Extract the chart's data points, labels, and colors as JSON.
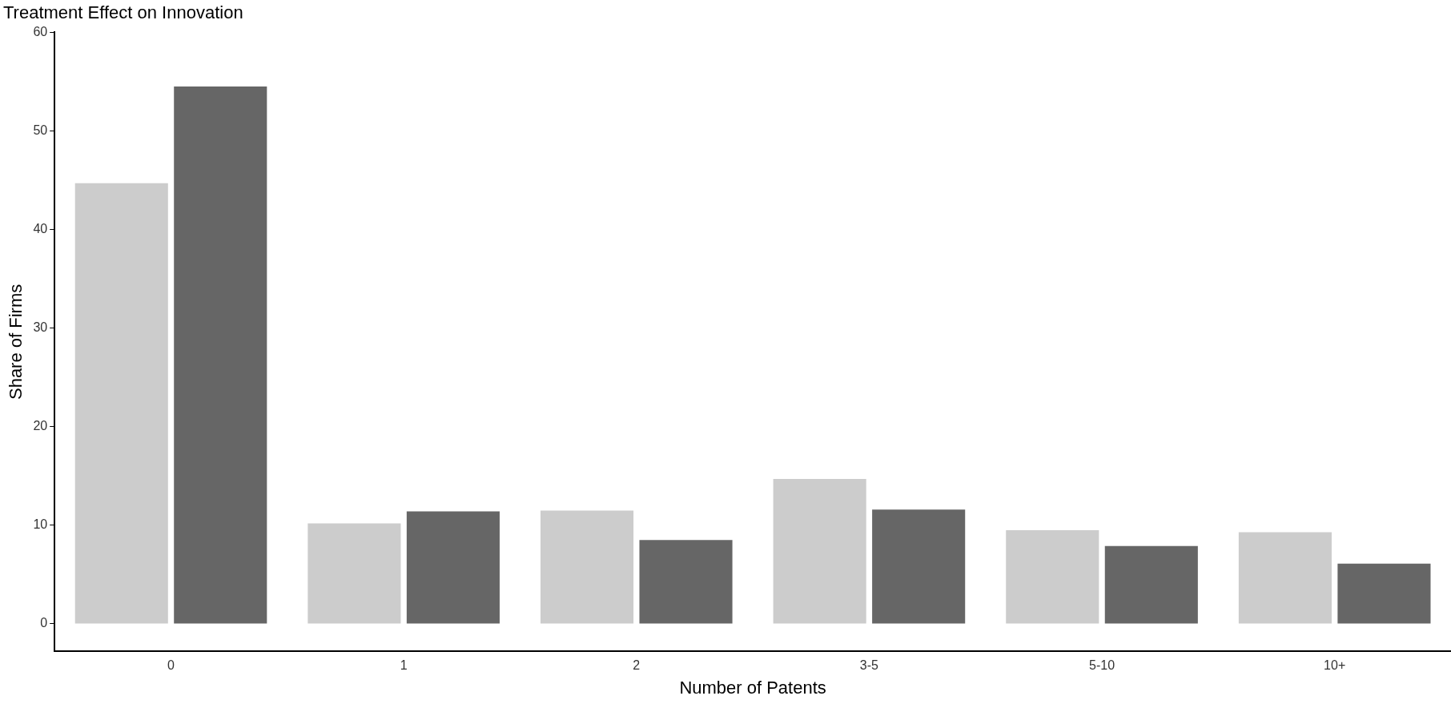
{
  "chart_data": {
    "type": "bar",
    "title": "Treatment Effect on Innovation",
    "xlabel": "Number of Patents",
    "ylabel": "Share of Firms",
    "categories": [
      "0",
      "1",
      "2",
      "3-5",
      "5-10",
      "10+"
    ],
    "series": [
      {
        "color": "#cccccc",
        "values": [
          44.7,
          10.2,
          11.5,
          14.7,
          9.5,
          9.3
        ]
      },
      {
        "color": "#666666",
        "values": [
          54.5,
          11.4,
          8.5,
          11.6,
          7.9,
          6.1
        ]
      }
    ],
    "ylim": [
      -2.8,
      60
    ],
    "yticks": [
      0,
      10,
      20,
      30,
      40,
      50,
      60
    ],
    "grid": false,
    "legend": false
  }
}
